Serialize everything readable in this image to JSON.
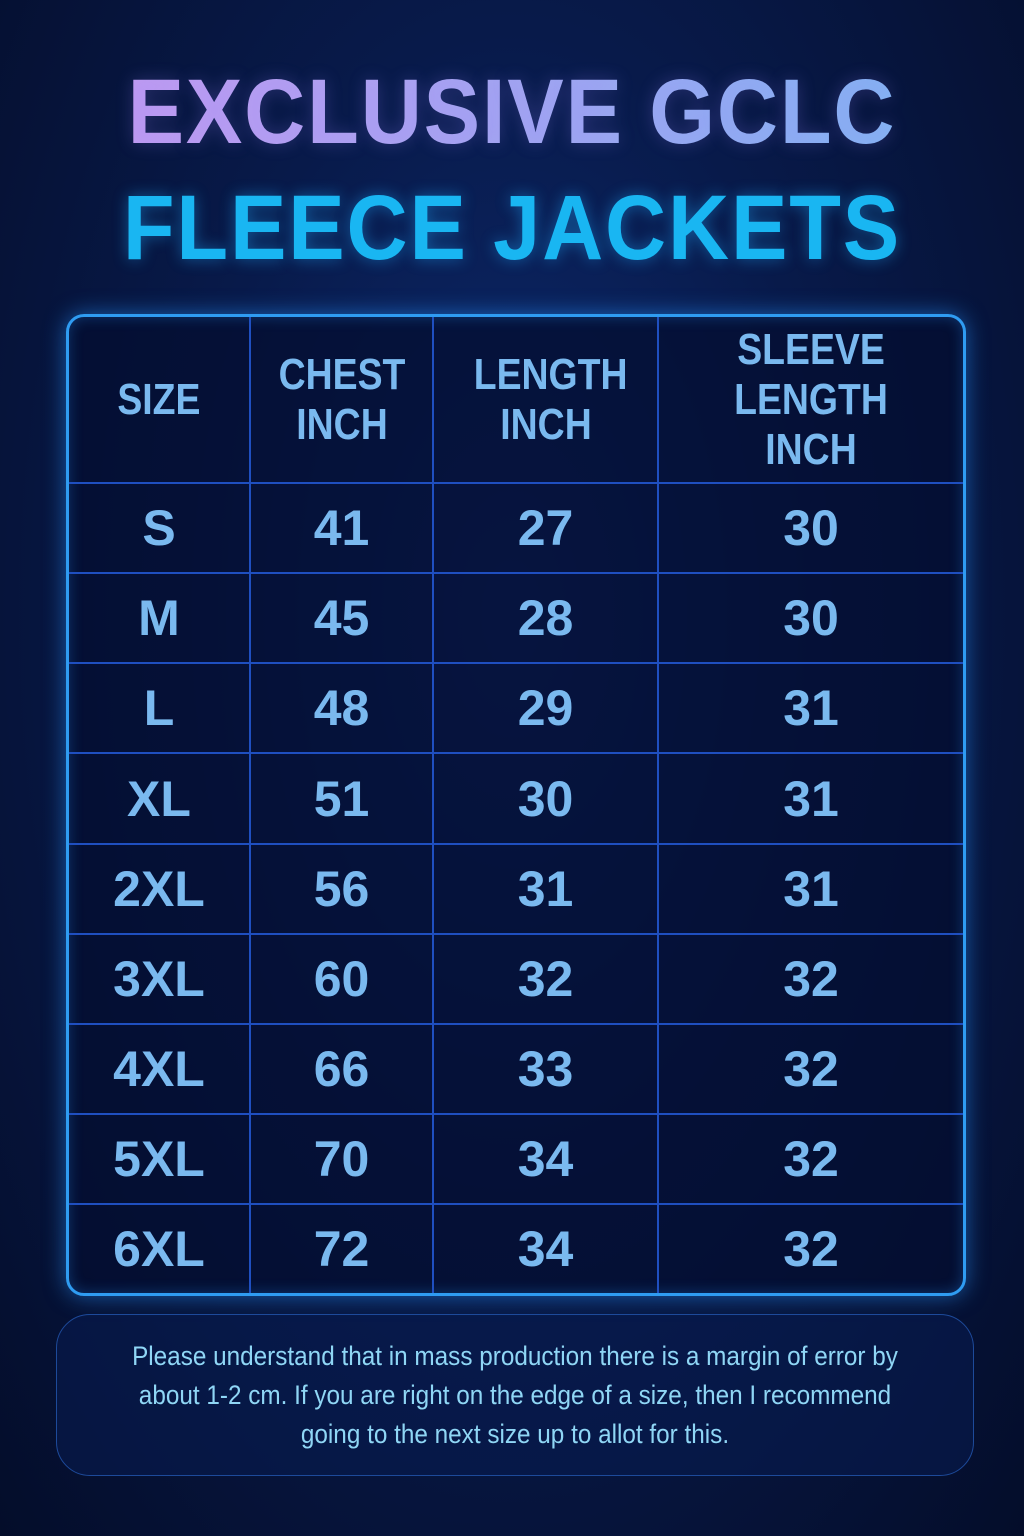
{
  "title": {
    "line1": "EXCLUSIVE GCLC",
    "line2": "FLEECE JACKETS"
  },
  "table": {
    "headers": [
      "SIZE",
      "CHEST INCH",
      "LENGTH INCH",
      "SLEEVE LENGTH INCH"
    ],
    "rows": [
      [
        "S",
        "41",
        "27",
        "30"
      ],
      [
        "M",
        "45",
        "28",
        "30"
      ],
      [
        "L",
        "48",
        "29",
        "31"
      ],
      [
        "XL",
        "51",
        "30",
        "31"
      ],
      [
        "2XL",
        "56",
        "31",
        "31"
      ],
      [
        "3XL",
        "60",
        "32",
        "32"
      ],
      [
        "4XL",
        "66",
        "33",
        "32"
      ],
      [
        "5XL",
        "70",
        "34",
        "32"
      ],
      [
        "6XL",
        "72",
        "34",
        "32"
      ]
    ]
  },
  "note": "Please understand that in mass production there is a margin of error by about 1-2 cm. If you are right on the edge of a size, then I recommend going to the next size up to allot for this.",
  "colors": {
    "title_line2": "#19b6f2",
    "border": "#2f9cf2",
    "cell_text": "#7ab9ef",
    "background": "#081a4a"
  }
}
